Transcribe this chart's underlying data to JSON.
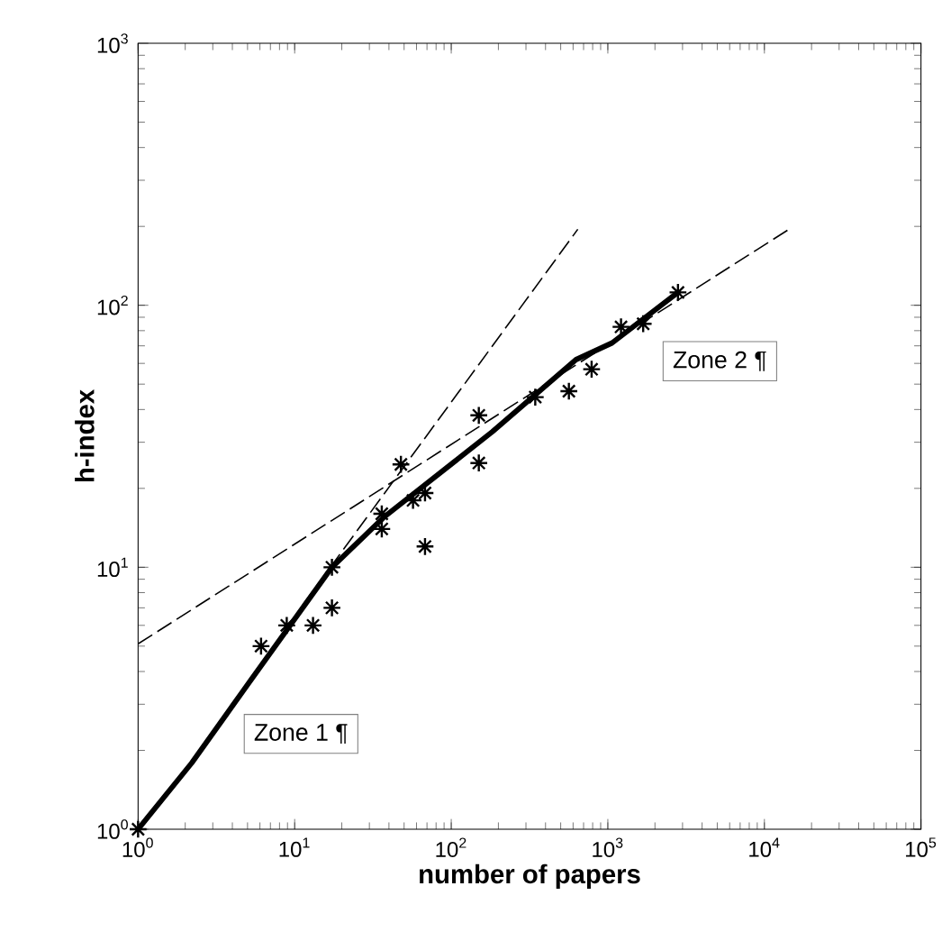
{
  "chart_data": {
    "type": "scatter",
    "xlabel": "number of papers",
    "ylabel": "h-index",
    "log": "xy",
    "xlim": [
      1,
      100000
    ],
    "ylim": [
      1,
      1000
    ],
    "xticks": [
      {
        "value": 1,
        "label": "10$^{0}$"
      },
      {
        "value": 10,
        "label": "10$^{1}$"
      },
      {
        "value": 100,
        "label": "10$^{2}$"
      },
      {
        "value": 1000,
        "label": "10$^{3}$"
      },
      {
        "value": 10000,
        "label": "10$^{4}$"
      },
      {
        "value": 100000,
        "label": "10$^{5}$"
      }
    ],
    "yticks": [
      {
        "value": 1,
        "label": "10$^{0}$"
      },
      {
        "value": 10,
        "label": "10$^{1}$"
      },
      {
        "value": 100,
        "label": "10$^{2}$"
      },
      {
        "value": 1000,
        "label": "10$^{3}$"
      }
    ],
    "grid": false,
    "series": [
      {
        "color": "#000000",
        "marker": "cross",
        "x": [
          1,
          6.1,
          8.9,
          13.1,
          17.3,
          17.3,
          36,
          36,
          47.7,
          57,
          68,
          68,
          150,
          150,
          344,
          564,
          788,
          1214,
          1682,
          2806
        ],
        "values": [
          1,
          5,
          6,
          6,
          7,
          10,
          14,
          16,
          24.7,
          18,
          19.2,
          12,
          38,
          25,
          44.6,
          47,
          57,
          82.7,
          85,
          112
        ]
      },
      {
        "type": "line",
        "color": "#000000",
        "marker": "none",
        "line_style": "solid",
        "x": [
          1,
          2.2,
          5.3,
          17.3,
          37,
          183,
          626,
          1064,
          2806
        ],
        "values": [
          1,
          1.79,
          3.74,
          10,
          15.5,
          32.9,
          62,
          71.8,
          112
        ]
      },
      {
        "type": "line",
        "color": "#000000",
        "marker": "none",
        "line_style": "dashed",
        "x": [
          1,
          14350
        ],
        "values": [
          5.1,
          195
        ]
      },
      {
        "type": "line",
        "color": "#000000",
        "marker": "none",
        "line_style": "dashed",
        "x": [
          11.3,
          643
        ],
        "values": [
          7.2,
          195
        ]
      }
    ],
    "annotations": [
      "Zone 1 ¶",
      "Zone 2 ¶"
    ]
  }
}
